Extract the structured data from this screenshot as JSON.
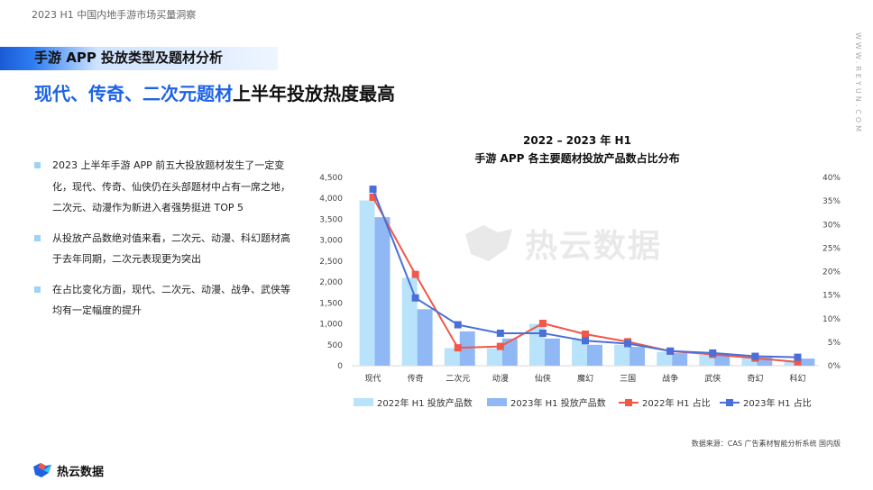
{
  "header": {
    "report_title": "2023 H1 中国内地手游市场买量洞察",
    "side_url": "WWW.REYUN.COM"
  },
  "section": {
    "title": "手游 APP 投放类型及题材分析"
  },
  "headline": {
    "highlight": "现代、传奇、二次元题材",
    "rest": "上半年投放热度最高"
  },
  "bullets": [
    "2023 上半年手游 APP 前五大投放题材发生了一定变化，现代、传奇、仙侠仍在头部题材中占有一席之地，二次元、动漫作为新进入者强势挺进 TOP 5",
    "从投放产品数绝对值来看，二次元、动漫、科幻题材高于去年同期，二次元表现更为突出",
    "在占比变化方面，现代、二次元、动漫、战争、武侠等均有一定幅度的提升"
  ],
  "chart_title": {
    "line1": "2022 – 2023 年 H1",
    "line2": "手游 APP 各主要题材投放产品数占比分布"
  },
  "chart_data": {
    "type": "bar",
    "categories": [
      "现代",
      "传奇",
      "二次元",
      "动漫",
      "仙侠",
      "魔幻",
      "三国",
      "战争",
      "武侠",
      "奇幻",
      "科幻"
    ],
    "series": [
      {
        "name": "2022年 H1 投放产品数",
        "kind": "bar",
        "axis": "left",
        "values": [
          3950,
          2100,
          420,
          420,
          1000,
          620,
          500,
          330,
          260,
          180,
          100
        ],
        "color": "#b8e3fb"
      },
      {
        "name": "2023年 H1 投放产品数",
        "kind": "bar",
        "axis": "left",
        "values": [
          3550,
          1350,
          820,
          650,
          650,
          500,
          450,
          300,
          260,
          200,
          170
        ],
        "color": "#8fb8f4"
      },
      {
        "name": "2022年 H1 占比",
        "kind": "line",
        "axis": "right",
        "values": [
          35.8,
          19.4,
          3.8,
          4.1,
          9.0,
          6.7,
          5.1,
          3.1,
          2.4,
          1.6,
          0.8
        ],
        "color": "#f0584a"
      },
      {
        "name": "2023年 H1 占比",
        "kind": "line",
        "axis": "right",
        "values": [
          37.5,
          14.4,
          8.7,
          6.9,
          6.9,
          5.3,
          4.7,
          3.1,
          2.7,
          2.0,
          1.8
        ],
        "color": "#4a70d8"
      }
    ],
    "y_left": {
      "range": [
        0,
        4500
      ],
      "ticks": [
        "0",
        "500",
        "1,000",
        "1,500",
        "2,000",
        "2,500",
        "3,000",
        "3,500",
        "4,000",
        "4,500"
      ]
    },
    "y_right": {
      "range": [
        0,
        40
      ],
      "ticks": [
        "0%",
        "5%",
        "10%",
        "15%",
        "20%",
        "25%",
        "30%",
        "35%",
        "40%"
      ]
    },
    "grid": false,
    "legend": "bottom"
  },
  "source": "数据来源：CAS 广告素材智能分析系统 国内版",
  "brand": {
    "name": "热云数据"
  },
  "watermark": {
    "text": "热云数据"
  },
  "colors": {
    "accent": "#1e63e6",
    "bullet": "#9fd3f5"
  }
}
